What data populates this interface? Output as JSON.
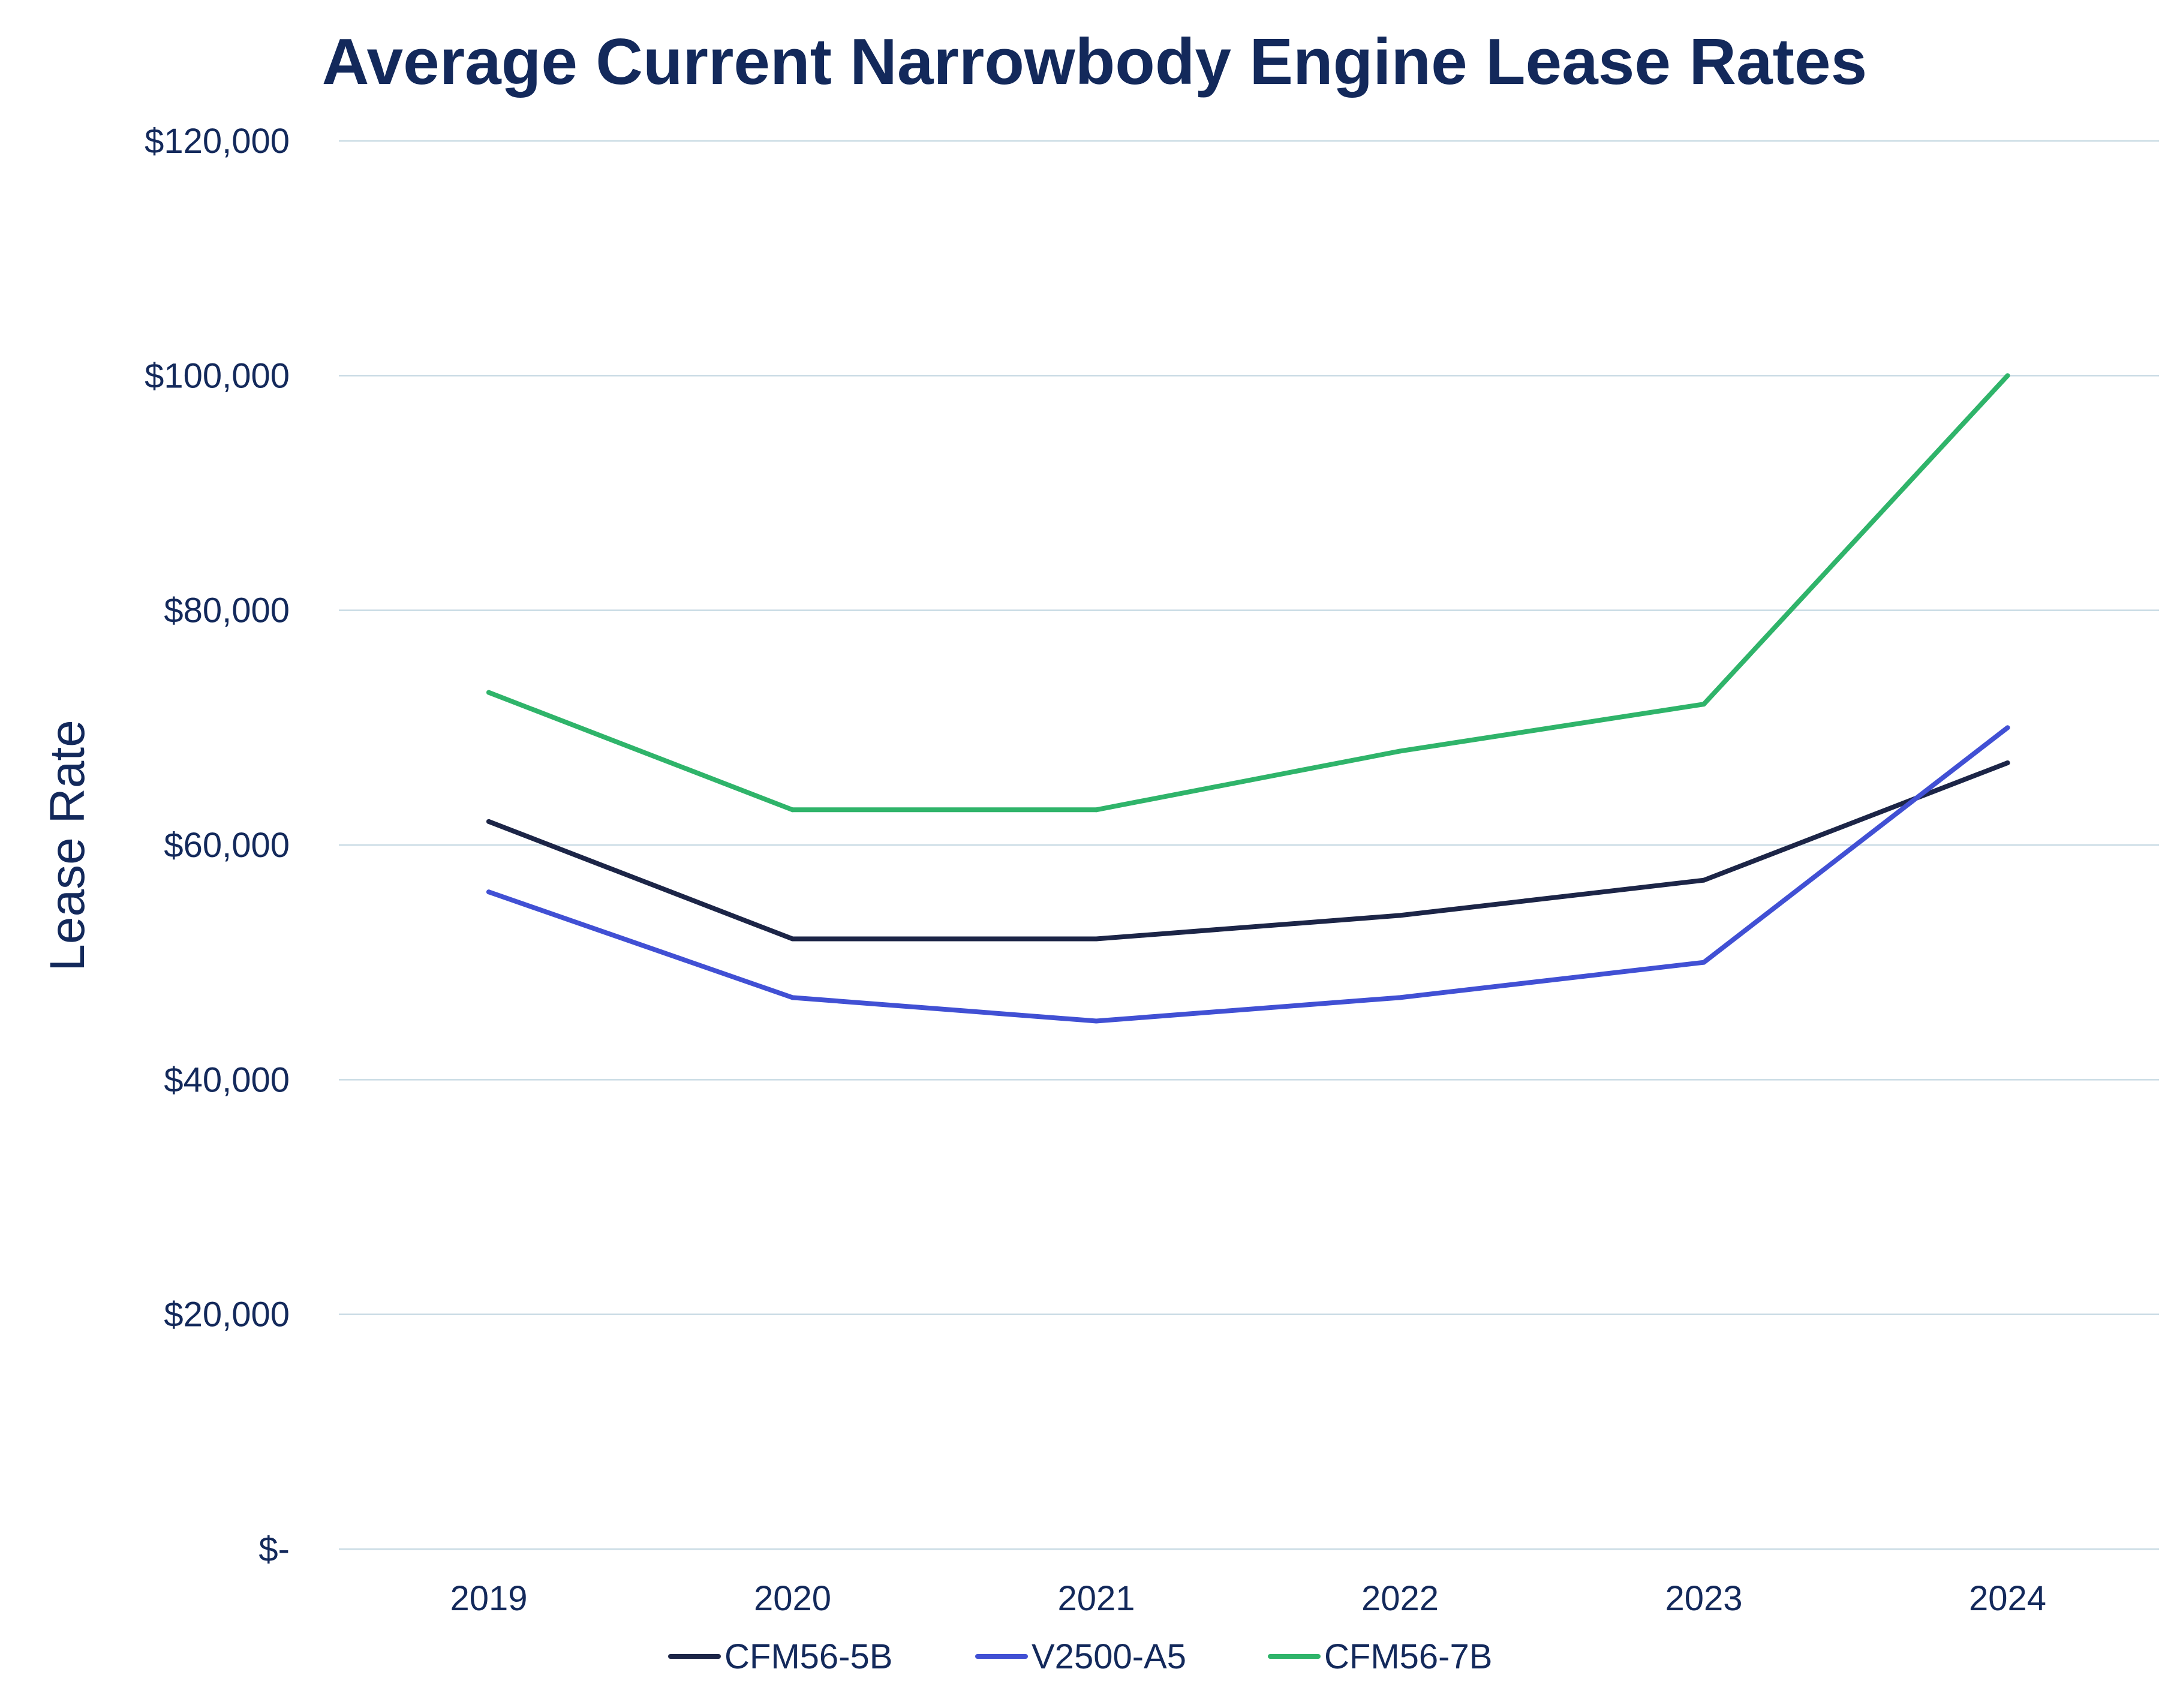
{
  "chart_data": {
    "type": "line",
    "title": "Average Current Narrowbody Engine Lease Rates",
    "xlabel": "",
    "ylabel": "Lease Rate",
    "categories": [
      "2019",
      "2020",
      "2021",
      "2022",
      "2023",
      "2024"
    ],
    "ylim": [
      0,
      120000
    ],
    "yticks": [
      0,
      20000,
      40000,
      60000,
      80000,
      100000,
      120000
    ],
    "ytick_labels": [
      "$-",
      "$20,000",
      "$40,000",
      "$60,000",
      "$80,000",
      "$100,000",
      "$120,000"
    ],
    "grid": true,
    "legend_position": "bottom",
    "series": [
      {
        "name": "CFM56-5B",
        "color": "#1c2547",
        "values": [
          62000,
          52000,
          52000,
          54000,
          57000,
          67000
        ]
      },
      {
        "name": "V2500-A5",
        "color": "#4150d4",
        "values": [
          56000,
          47000,
          45000,
          47000,
          50000,
          70000
        ]
      },
      {
        "name": "CFM56-7B",
        "color": "#2fb46a",
        "values": [
          73000,
          63000,
          63000,
          68000,
          72000,
          100000
        ]
      }
    ]
  }
}
